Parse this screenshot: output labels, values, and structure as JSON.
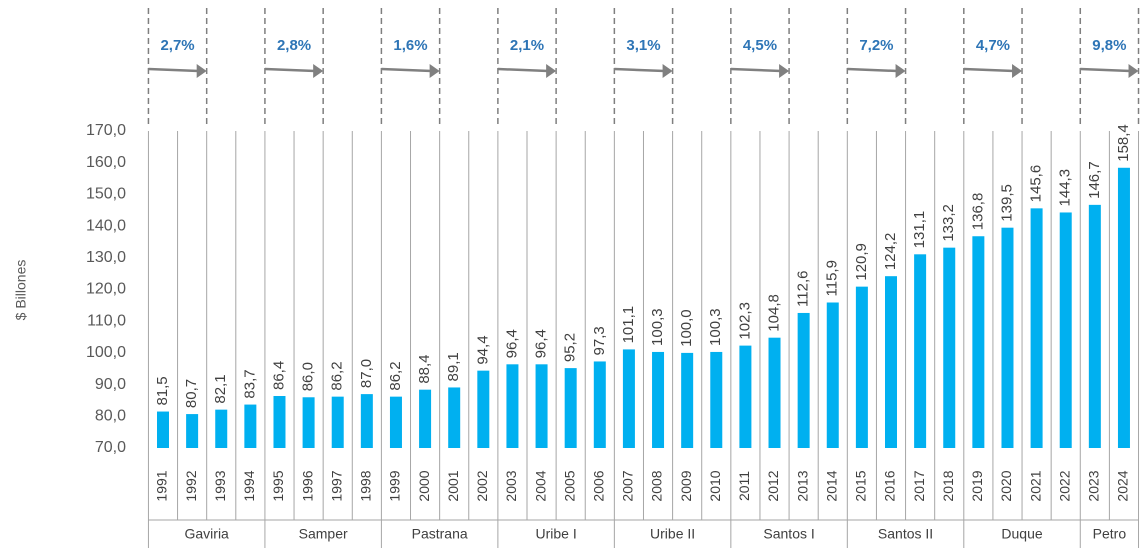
{
  "chart_data": {
    "type": "bar",
    "y_label": "$ Billones",
    "color": "#00b0f0",
    "categories": [
      "1991",
      "1992",
      "1993",
      "1994",
      "1995",
      "1996",
      "1997",
      "1998",
      "1999",
      "2000",
      "2001",
      "2002",
      "2003",
      "2004",
      "2005",
      "2006",
      "2007",
      "2008",
      "2009",
      "2010",
      "2011",
      "2012",
      "2013",
      "2014",
      "2015",
      "2016",
      "2017",
      "2018",
      "2019",
      "2020",
      "2021",
      "2022",
      "2023",
      "2024"
    ],
    "values": [
      81.5,
      80.7,
      82.1,
      83.7,
      86.4,
      86.0,
      86.2,
      87.0,
      86.2,
      88.4,
      89.1,
      94.4,
      96.4,
      96.4,
      95.2,
      97.3,
      101.1,
      100.3,
      100.0,
      100.3,
      102.3,
      104.8,
      112.6,
      115.9,
      120.9,
      124.2,
      131.1,
      133.2,
      136.8,
      139.5,
      145.6,
      144.3,
      146.7,
      158.4
    ],
    "value_labels": [
      "81,5",
      "80,7",
      "82,1",
      "83,7",
      "86,4",
      "86,0",
      "86,2",
      "87,0",
      "86,2",
      "88,4",
      "89,1",
      "94,4",
      "96,4",
      "96,4",
      "95,2",
      "97,3",
      "101,1",
      "100,3",
      "100,0",
      "100,3",
      "102,3",
      "104,8",
      "112,6",
      "115,9",
      "120,9",
      "124,2",
      "131,1",
      "133,2",
      "136,8",
      "139,5",
      "145,6",
      "144,3",
      "146,7",
      "158,4"
    ],
    "ylim": [
      70,
      170
    ],
    "yticks": [
      {
        "value": 70,
        "label": "70,0"
      },
      {
        "value": 80,
        "label": "80,0"
      },
      {
        "value": 90,
        "label": "90,0"
      },
      {
        "value": 100,
        "label": "100,0"
      },
      {
        "value": 110,
        "label": "110,0"
      },
      {
        "value": 120,
        "label": "120,0"
      },
      {
        "value": 130,
        "label": "130,0"
      },
      {
        "value": 140,
        "label": "140,0"
      },
      {
        "value": 150,
        "label": "150,0"
      },
      {
        "value": 160,
        "label": "160,0"
      },
      {
        "value": 170,
        "label": "170,0"
      }
    ],
    "groups": [
      {
        "name": "Gaviria",
        "growth": "2,7%"
      },
      {
        "name": "Samper",
        "growth": "2,8%"
      },
      {
        "name": "Pastrana",
        "growth": "1,6%"
      },
      {
        "name": "Uribe I",
        "growth": "2,1%"
      },
      {
        "name": "Uribe II",
        "growth": "3,1%"
      },
      {
        "name": "Santos I",
        "growth": "4,5%"
      },
      {
        "name": "Santos II",
        "growth": "7,2%"
      },
      {
        "name": "Duque",
        "growth": "4,7%"
      },
      {
        "name": "Petro",
        "growth": "9,8%"
      }
    ]
  }
}
